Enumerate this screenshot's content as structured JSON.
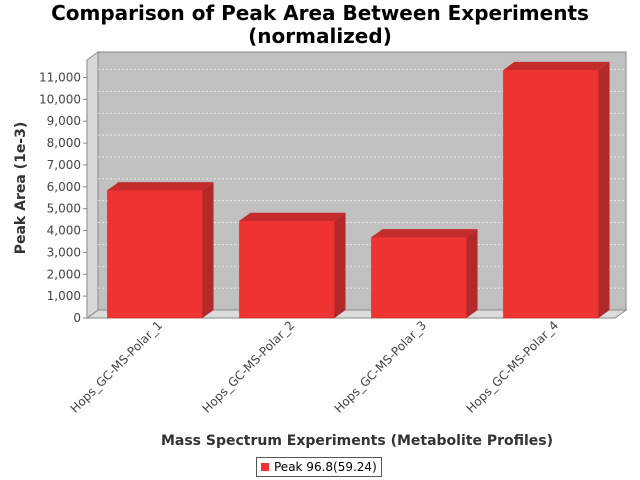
{
  "chart_data": {
    "type": "bar",
    "title": "Comparison of Peak Area Between Experiments (normalized)",
    "title_lines": [
      "Comparison of Peak Area Between Experiments",
      "(normalized)"
    ],
    "xlabel": "Mass Spectrum Experiments (Metabolite Profiles)",
    "ylabel": "Peak Area (1e-3)",
    "categories": [
      "Hops_GC-MS-Polar_1",
      "Hops_GC-MS-Polar_2",
      "Hops_GC-MS-Polar_3",
      "Hops_GC-MS-Polar_4"
    ],
    "series": [
      {
        "name": "Peak 96.8(59.24)",
        "values": [
          5850,
          4450,
          3700,
          11350
        ],
        "color": "#ee3333"
      }
    ],
    "ylim": [
      0,
      11800
    ],
    "yticks": [
      0,
      1000,
      2000,
      3000,
      4000,
      5000,
      6000,
      7000,
      8000,
      9000,
      10000,
      11000
    ],
    "ytick_labels": [
      "0",
      "1,000",
      "2,000",
      "3,000",
      "4,000",
      "5,000",
      "6,000",
      "7,000",
      "8,000",
      "9,000",
      "10,000",
      "11,000"
    ],
    "grid": true,
    "legend_position": "bottom-center",
    "colors": {
      "plot_background": "#c0c0c0",
      "bar_front": "#ee3333",
      "bar_side": "#b32828",
      "bar_top": "#c42c2c"
    }
  }
}
